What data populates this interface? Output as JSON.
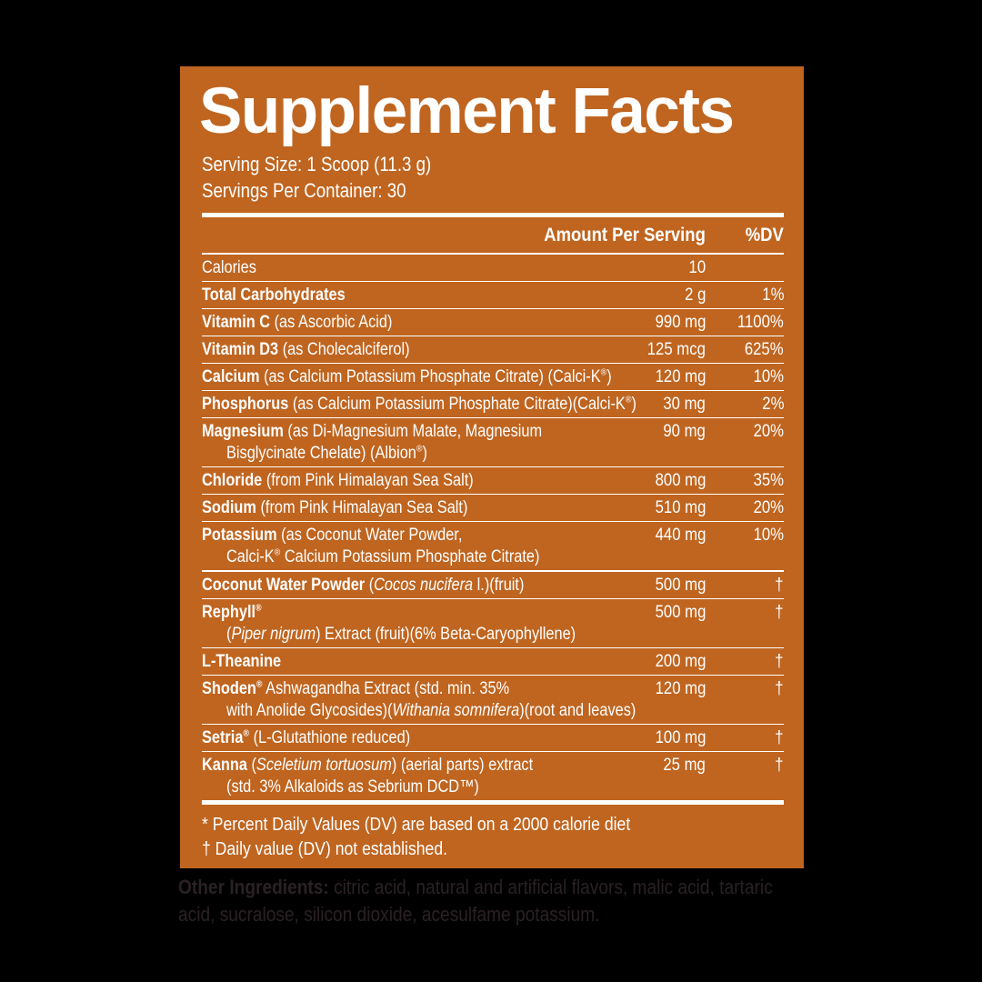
{
  "colors": {
    "page_bg": "#000000",
    "panel_bg": "#bf6520",
    "panel_text": "#ffffff",
    "other_ingredients_text": "#2a2125"
  },
  "panel": {
    "title": "Supplement Facts",
    "serving_size": "Serving Size: 1 Scoop (11.3 g)",
    "servings_per_container": "Servings Per Container: 30",
    "header": {
      "amount": "Amount Per Serving",
      "dv": "%DV"
    },
    "rows": [
      {
        "name": "Calories",
        "bold": false,
        "detail": "",
        "amount": "10",
        "dv": ""
      },
      {
        "name": "Total Carbohydrates",
        "bold": true,
        "detail": "",
        "amount": "2 g",
        "dv": "1%"
      },
      {
        "name": "Vitamin C",
        "bold": true,
        "detail": " (as Ascorbic Acid)",
        "amount": "990 mg",
        "dv": "1100%"
      },
      {
        "name": "Vitamin D3",
        "bold": true,
        "detail": " (as Cholecalciferol)",
        "amount": "125 mcg",
        "dv": "625%"
      },
      {
        "name": "Calcium",
        "bold": true,
        "detail": " (as Calcium Potassium Phosphate Citrate) (Calci-K®)",
        "amount": "120 mg",
        "dv": "10%"
      },
      {
        "name": "Phosphorus",
        "bold": true,
        "detail": " (as Calcium Potassium Phosphate Citrate)(Calci-K®)",
        "amount": "30 mg",
        "dv": "2%"
      },
      {
        "name": "Magnesium",
        "bold": true,
        "detail": " (as Di-Magnesium Malate, Magnesium",
        "cont": [
          {
            "t": "Bisglycinate Chelate) (Albion®)"
          }
        ],
        "amount": "90 mg",
        "dv": "20%"
      },
      {
        "name": "Chloride",
        "bold": true,
        "detail": " (from Pink Himalayan Sea Salt)",
        "amount": "800 mg",
        "dv": "35%"
      },
      {
        "name": "Sodium",
        "bold": true,
        "detail": " (from Pink Himalayan Sea Salt)",
        "amount": "510 mg",
        "dv": "20%"
      },
      {
        "name": "Potassium",
        "bold": true,
        "detail": " (as Coconut Water Powder,",
        "cont": [
          {
            "t": "Calci-K® Calcium Potassium Phosphate Citrate)"
          }
        ],
        "amount": "440 mg",
        "dv": "10%"
      },
      {
        "name": "Coconut Water Powder",
        "bold": true,
        "section": true,
        "detail": [
          {
            "t": " ("
          },
          {
            "t": "Cocos nucifera",
            "i": true
          },
          {
            "t": " l.)(fruit)"
          }
        ],
        "amount": "500 mg",
        "dv": "†"
      },
      {
        "name": "Rephyll®",
        "bold": true,
        "detail": "",
        "cont": [
          {
            "t": "("
          },
          {
            "t": "Piper nigrum",
            "i": true
          },
          {
            "t": ") Extract (fruit)(6% Beta-Caryophyllene)"
          }
        ],
        "amount": "500 mg",
        "dv": "†"
      },
      {
        "name": "L-Theanine",
        "bold": true,
        "detail": "",
        "amount": "200 mg",
        "dv": "†"
      },
      {
        "name": "Shoden®",
        "bold": true,
        "detail": " Ashwagandha Extract (std. min. 35%",
        "cont": [
          {
            "t": "with Anolide Glycosides)("
          },
          {
            "t": "Withania somnifera",
            "i": true
          },
          {
            "t": ")(root and leaves)"
          }
        ],
        "amount": "120 mg",
        "dv": "†"
      },
      {
        "name": "Setria®",
        "bold": true,
        "detail": " (L-Glutathione reduced)",
        "amount": "100 mg",
        "dv": "†"
      },
      {
        "name": "Kanna",
        "bold": true,
        "detail": [
          {
            "t": " ("
          },
          {
            "t": "Sceletium tortuosum",
            "i": true
          },
          {
            "t": ") (aerial parts) extract"
          }
        ],
        "cont": [
          {
            "t": "(std. 3% Alkaloids as Sebrium DCD™)"
          }
        ],
        "amount": "25 mg",
        "dv": "†"
      }
    ],
    "footnotes": [
      "* Percent Daily Values (DV) are based on a 2000 calorie diet",
      "† Daily value (DV) not established."
    ]
  },
  "other_ingredients": {
    "label": "Other Ingredients:",
    "text": " citric acid, natural and artificial flavors, malic acid, tartaric acid, sucralose, silicon dioxide, acesulfame potassium."
  }
}
